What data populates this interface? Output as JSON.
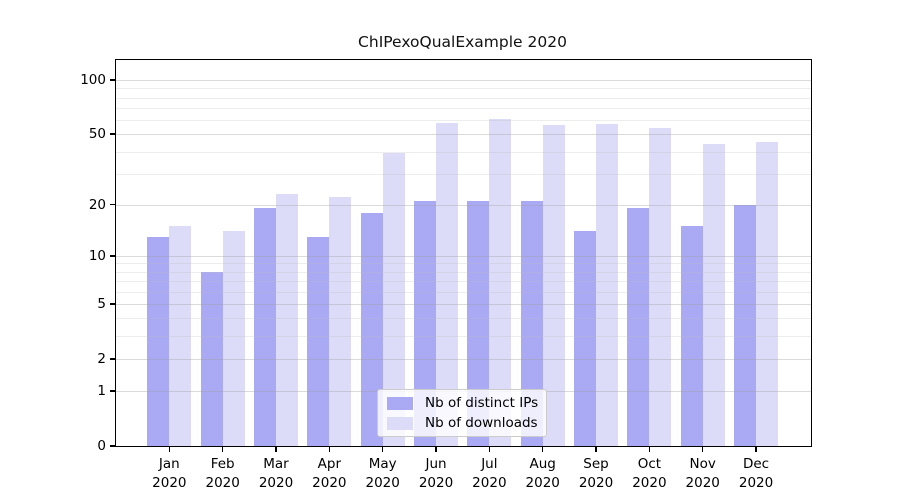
{
  "title": "ChIPexoQualExample 2020",
  "legend": {
    "items": [
      {
        "label": "Nb of distinct IPs",
        "color": "#a9a9f4"
      },
      {
        "label": "Nb of downloads",
        "color": "#dcdcf9"
      }
    ]
  },
  "y_axis": {
    "tick_labels": [
      "100",
      "50",
      "20",
      "10",
      "5",
      "2",
      "1",
      "0"
    ],
    "tick_values": [
      100,
      50,
      20,
      10,
      5,
      2,
      1,
      0
    ]
  },
  "x_axis": {
    "year_line": "2020",
    "month_labels": [
      "Jan",
      "Feb",
      "Mar",
      "Apr",
      "May",
      "Jun",
      "Jul",
      "Aug",
      "Sep",
      "Oct",
      "Nov",
      "Dec"
    ]
  },
  "colors": {
    "dark_bar": "#a9a9f4",
    "light_bar": "#dcdcf9",
    "major_grid": "rgba(160,160,160,0.38)",
    "minor_grid": "rgba(190,190,190,0.28)"
  },
  "chart_data": {
    "type": "bar",
    "y_scale": "log1p",
    "title": "ChIPexoQualExample 2020",
    "categories": [
      "Jan 2020",
      "Feb 2020",
      "Mar 2020",
      "Apr 2020",
      "May 2020",
      "Jun 2020",
      "Jul 2020",
      "Aug 2020",
      "Sep 2020",
      "Oct 2020",
      "Nov 2020",
      "Dec 2020"
    ],
    "series": [
      {
        "name": "Nb of distinct IPs",
        "color": "#a9a9f4",
        "values": [
          13,
          8,
          19,
          13,
          18,
          21,
          21,
          21,
          14,
          19,
          15,
          20
        ]
      },
      {
        "name": "Nb of downloads",
        "color": "#dcdcf9",
        "values": [
          15,
          14,
          23,
          22,
          39,
          58,
          61,
          56,
          57,
          54,
          44,
          45
        ]
      }
    ],
    "ylim": [
      0,
      128
    ],
    "y_major_ticks": [
      0,
      1,
      2,
      5,
      10,
      20,
      50,
      100
    ],
    "y_minor_gridlines": [
      3,
      4,
      6,
      7,
      8,
      9,
      30,
      40,
      60,
      70,
      80,
      90
    ],
    "grid": true,
    "legend_position": "lower center (inside axes)"
  }
}
